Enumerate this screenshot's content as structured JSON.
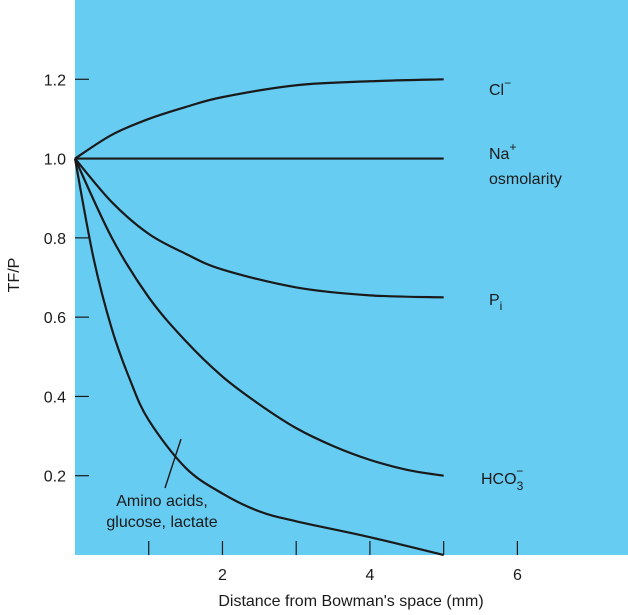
{
  "colors": {
    "plot_background": "#66CCF2",
    "line": "#1a1a1a"
  },
  "chart_data": {
    "type": "line",
    "xlabel": "Distance from Bowman's space (mm)",
    "ylabel": "TF/P",
    "xlim": [
      0,
      7.5
    ],
    "ylim": [
      0,
      1.4
    ],
    "xticks": [
      1,
      2,
      3,
      4,
      5,
      6
    ],
    "xtick_labels": [
      "",
      "2",
      "",
      "4",
      "",
      "6"
    ],
    "yticks": [
      0.2,
      0.4,
      0.6,
      0.8,
      1.0,
      1.2
    ],
    "ytick_labels": [
      "0.2",
      "0.4",
      "0.6",
      "0.8",
      "1.0",
      "1.2"
    ],
    "series": [
      {
        "name": "Cl−",
        "x": [
          0,
          0.5,
          1,
          1.5,
          2,
          3,
          4,
          5
        ],
        "y": [
          1.0,
          1.06,
          1.1,
          1.13,
          1.155,
          1.185,
          1.195,
          1.2
        ]
      },
      {
        "name": "Na+ osmolarity",
        "x": [
          0,
          1,
          2,
          3,
          4,
          5
        ],
        "y": [
          1.0,
          1.0,
          1.0,
          1.0,
          1.0,
          1.0
        ]
      },
      {
        "name": "Pi",
        "x": [
          0,
          0.5,
          1,
          1.5,
          2,
          3,
          4,
          5
        ],
        "y": [
          1.0,
          0.89,
          0.81,
          0.76,
          0.72,
          0.675,
          0.655,
          0.65
        ]
      },
      {
        "name": "HCO3−",
        "x": [
          0,
          0.5,
          1,
          1.5,
          2,
          2.5,
          3,
          3.5,
          4,
          4.5,
          5
        ],
        "y": [
          1.0,
          0.8,
          0.65,
          0.54,
          0.45,
          0.38,
          0.32,
          0.275,
          0.24,
          0.215,
          0.2
        ]
      },
      {
        "name": "Amino acids, glucose, lactate",
        "x": [
          0,
          0.25,
          0.5,
          0.75,
          1,
          1.5,
          2,
          2.5,
          3,
          4,
          5
        ],
        "y": [
          1.0,
          0.75,
          0.57,
          0.44,
          0.34,
          0.22,
          0.155,
          0.11,
          0.085,
          0.045,
          0.0
        ]
      }
    ],
    "series_labels": {
      "cl": {
        "base": "Cl",
        "sup": "−"
      },
      "na": {
        "base": "Na",
        "sup": "+"
      },
      "osmolarity": "osmolarity",
      "pi": {
        "base": "P",
        "sub": "i"
      },
      "hco3": {
        "base": "HCO",
        "sub": "3",
        "sup": "−"
      },
      "amino_line1": "Amino acids,",
      "amino_line2": "glucose, lactate"
    }
  }
}
